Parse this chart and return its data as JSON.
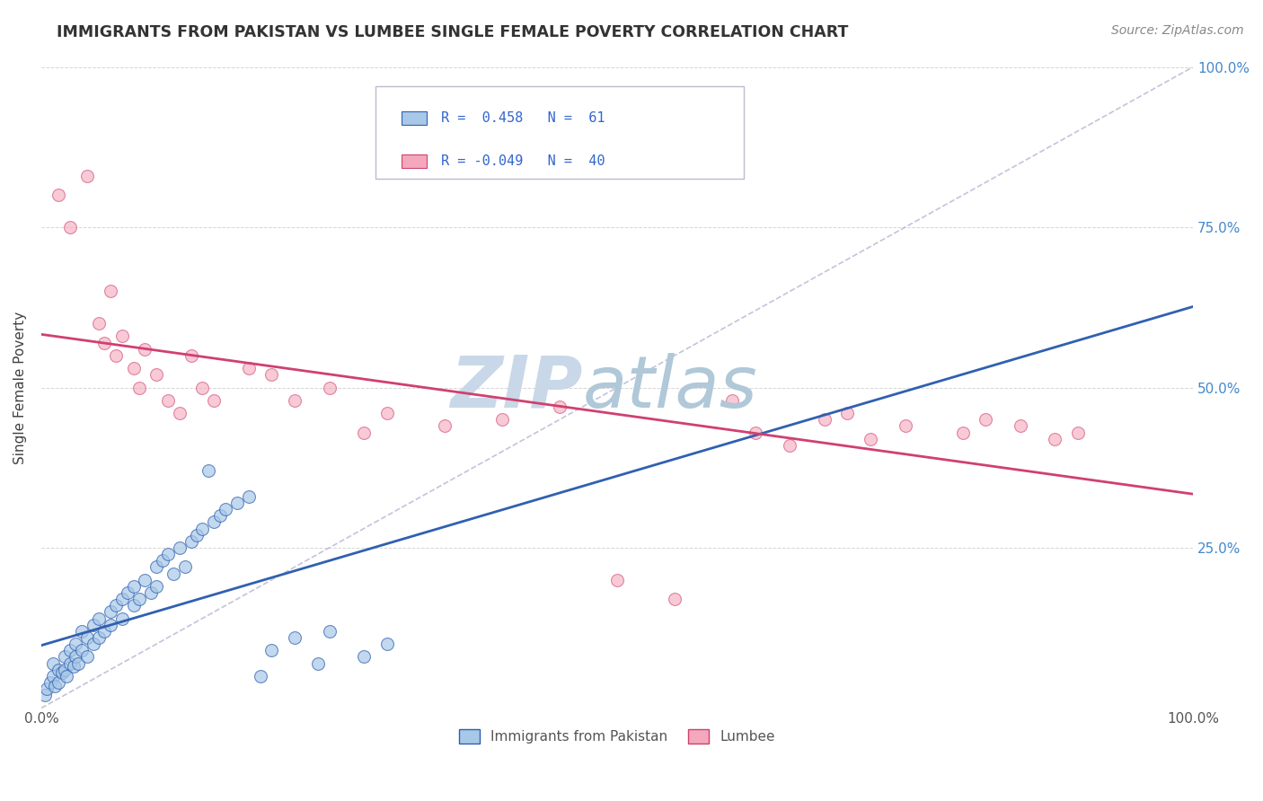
{
  "title": "IMMIGRANTS FROM PAKISTAN VS LUMBEE SINGLE FEMALE POVERTY CORRELATION CHART",
  "source": "Source: ZipAtlas.com",
  "ylabel": "Single Female Poverty",
  "legend_r1": "R =  0.458",
  "legend_n1": "N =  61",
  "legend_r2": "R = -0.049",
  "legend_n2": "N =  40",
  "blue_color": "#a8c8e8",
  "pink_color": "#f4a8bc",
  "blue_line_color": "#3060b0",
  "pink_line_color": "#d04070",
  "blue_scatter": [
    [
      0.3,
      2.0
    ],
    [
      0.5,
      3.0
    ],
    [
      0.8,
      4.0
    ],
    [
      1.0,
      5.0
    ],
    [
      1.0,
      7.0
    ],
    [
      1.2,
      3.5
    ],
    [
      1.5,
      6.0
    ],
    [
      1.5,
      4.0
    ],
    [
      1.8,
      5.5
    ],
    [
      2.0,
      8.0
    ],
    [
      2.0,
      6.0
    ],
    [
      2.2,
      5.0
    ],
    [
      2.5,
      7.0
    ],
    [
      2.5,
      9.0
    ],
    [
      2.8,
      6.5
    ],
    [
      3.0,
      8.0
    ],
    [
      3.0,
      10.0
    ],
    [
      3.2,
      7.0
    ],
    [
      3.5,
      9.0
    ],
    [
      3.5,
      12.0
    ],
    [
      4.0,
      8.0
    ],
    [
      4.0,
      11.0
    ],
    [
      4.5,
      13.0
    ],
    [
      4.5,
      10.0
    ],
    [
      5.0,
      14.0
    ],
    [
      5.0,
      11.0
    ],
    [
      5.5,
      12.0
    ],
    [
      6.0,
      15.0
    ],
    [
      6.0,
      13.0
    ],
    [
      6.5,
      16.0
    ],
    [
      7.0,
      17.0
    ],
    [
      7.0,
      14.0
    ],
    [
      7.5,
      18.0
    ],
    [
      8.0,
      19.0
    ],
    [
      8.0,
      16.0
    ],
    [
      8.5,
      17.0
    ],
    [
      9.0,
      20.0
    ],
    [
      9.5,
      18.0
    ],
    [
      10.0,
      22.0
    ],
    [
      10.0,
      19.0
    ],
    [
      10.5,
      23.0
    ],
    [
      11.0,
      24.0
    ],
    [
      11.5,
      21.0
    ],
    [
      12.0,
      25.0
    ],
    [
      12.5,
      22.0
    ],
    [
      13.0,
      26.0
    ],
    [
      13.5,
      27.0
    ],
    [
      14.0,
      28.0
    ],
    [
      14.5,
      37.0
    ],
    [
      15.0,
      29.0
    ],
    [
      15.5,
      30.0
    ],
    [
      16.0,
      31.0
    ],
    [
      17.0,
      32.0
    ],
    [
      18.0,
      33.0
    ],
    [
      19.0,
      5.0
    ],
    [
      20.0,
      9.0
    ],
    [
      22.0,
      11.0
    ],
    [
      24.0,
      7.0
    ],
    [
      25.0,
      12.0
    ],
    [
      28.0,
      8.0
    ],
    [
      30.0,
      10.0
    ]
  ],
  "pink_scatter": [
    [
      1.5,
      80.0
    ],
    [
      2.5,
      75.0
    ],
    [
      4.0,
      83.0
    ],
    [
      5.0,
      60.0
    ],
    [
      5.5,
      57.0
    ],
    [
      6.0,
      65.0
    ],
    [
      6.5,
      55.0
    ],
    [
      7.0,
      58.0
    ],
    [
      8.0,
      53.0
    ],
    [
      8.5,
      50.0
    ],
    [
      9.0,
      56.0
    ],
    [
      10.0,
      52.0
    ],
    [
      11.0,
      48.0
    ],
    [
      12.0,
      46.0
    ],
    [
      13.0,
      55.0
    ],
    [
      14.0,
      50.0
    ],
    [
      15.0,
      48.0
    ],
    [
      18.0,
      53.0
    ],
    [
      20.0,
      52.0
    ],
    [
      22.0,
      48.0
    ],
    [
      25.0,
      50.0
    ],
    [
      28.0,
      43.0
    ],
    [
      30.0,
      46.0
    ],
    [
      35.0,
      44.0
    ],
    [
      40.0,
      45.0
    ],
    [
      45.0,
      47.0
    ],
    [
      50.0,
      20.0
    ],
    [
      55.0,
      17.0
    ],
    [
      60.0,
      48.0
    ],
    [
      62.0,
      43.0
    ],
    [
      65.0,
      41.0
    ],
    [
      68.0,
      45.0
    ],
    [
      70.0,
      46.0
    ],
    [
      72.0,
      42.0
    ],
    [
      75.0,
      44.0
    ],
    [
      80.0,
      43.0
    ],
    [
      82.0,
      45.0
    ],
    [
      85.0,
      44.0
    ],
    [
      88.0,
      42.0
    ],
    [
      90.0,
      43.0
    ]
  ],
  "xlim": [
    0,
    100
  ],
  "ylim": [
    0,
    100
  ],
  "background_color": "#ffffff",
  "grid_color": "#cccccc",
  "title_color": "#333333",
  "source_color": "#888888",
  "watermark_zip_color": "#c8d8e8",
  "watermark_atlas_color": "#b0c8d8"
}
